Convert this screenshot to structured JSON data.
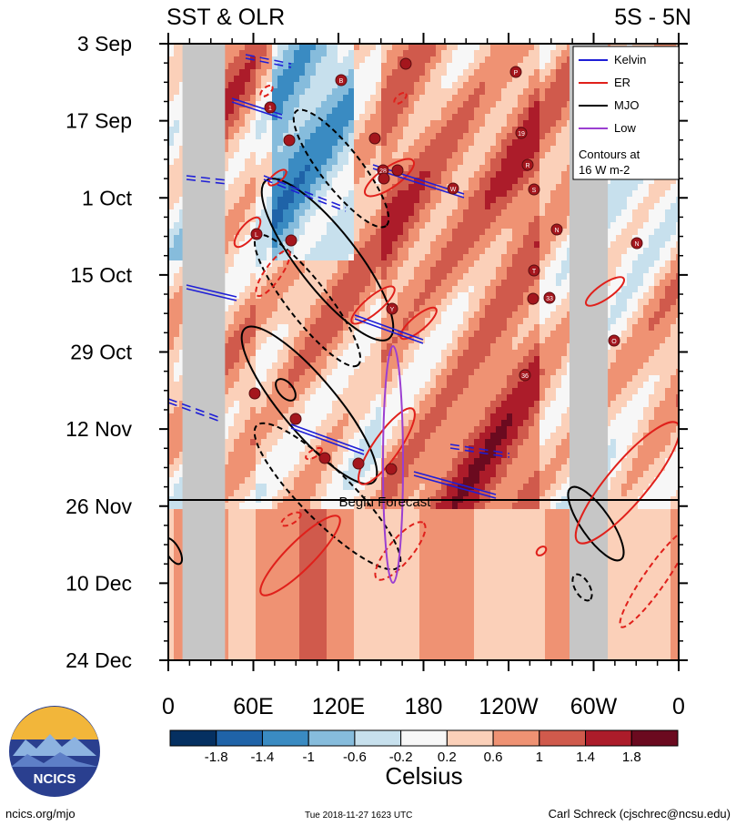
{
  "chart_data": {
    "type": "heatmap",
    "title_left": "SST & OLR",
    "title_right": "5S - 5N",
    "y_dates": [
      "3 Sep",
      "17 Sep",
      "1 Oct",
      "15 Oct",
      "29 Oct",
      "12 Nov",
      "26 Nov",
      "10 Dec",
      "24 Dec"
    ],
    "x_labels": [
      "0",
      "60E",
      "120E",
      "180",
      "120W",
      "60W",
      "0"
    ],
    "x_values": [
      0,
      60,
      120,
      180,
      240,
      300,
      360
    ],
    "xlim": [
      0,
      360
    ],
    "forecast_label": "Begin Forecast",
    "forecast_date": "26 Nov",
    "legend": {
      "entries": [
        {
          "name": "Kelvin",
          "color": "#1f1fd6"
        },
        {
          "name": "ER",
          "color": "#e0201b"
        },
        {
          "name": "MJO",
          "color": "#000000"
        },
        {
          "name": "Low",
          "color": "#9b3fd1"
        }
      ],
      "note_line1": "Contours at",
      "note_line2": "16 W m-2"
    },
    "colorbar": {
      "title": "Celsius",
      "ticks": [
        "-1.8",
        "-1.4",
        "-1",
        "-0.6",
        "-0.2",
        "0.2",
        "0.6",
        "1",
        "1.4",
        "1.8"
      ],
      "colors": [
        "#053061",
        "#1f63a8",
        "#3a8bc2",
        "#86bcdc",
        "#c7e0ed",
        "#f7f7f7",
        "#fbd0b9",
        "#ef9273",
        "#d05a4c",
        "#ac1c2a",
        "#6b0a1f"
      ]
    },
    "storm_labels": [
      "B",
      "1",
      "P",
      "19",
      "R",
      "S",
      "N",
      "L",
      "28",
      "W",
      "N",
      "Y",
      "O",
      "36",
      "33",
      "T"
    ]
  },
  "branding": {
    "logo_text": "NCICS",
    "url": "ncics.org/mjo",
    "timestamp": "Tue 2018-11-27 1623 UTC",
    "author": "Carl Schreck (cjschrec@ncsu.edu)"
  },
  "colors": {
    "gray_mask": "#c6c6c6"
  }
}
